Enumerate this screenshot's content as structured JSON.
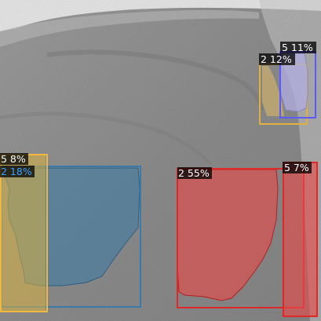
{
  "image": {
    "description_colors": {
      "background": "#8c8c8c",
      "bright_region": "#e8e8e8"
    }
  },
  "detections": [
    {
      "id": "det-1",
      "label": "5 11%",
      "color": "#5a5aff",
      "fill": "#b0aee0",
      "label_color": "#ffffff"
    },
    {
      "id": "det-2",
      "label": "2 12%",
      "color": "#f0b840",
      "fill": "#e8c060",
      "label_color": "#ffffff"
    },
    {
      "id": "det-3",
      "label": "5 8%",
      "color": "#f0b840",
      "fill": "#d8b040",
      "label_color": "#ffffff"
    },
    {
      "id": "det-4",
      "label": "2 18%",
      "color": "#3a7aa8",
      "fill": "#3a7aa8",
      "label_color": "#3aa0ff"
    },
    {
      "id": "det-5",
      "label": "2 55%",
      "color": "#e02828",
      "fill": "#e84848",
      "label_color": "#ffffff"
    },
    {
      "id": "det-6",
      "label": "5 7%",
      "color": "#e02828",
      "fill": "#e84848",
      "label_color": "#ffffff"
    }
  ]
}
